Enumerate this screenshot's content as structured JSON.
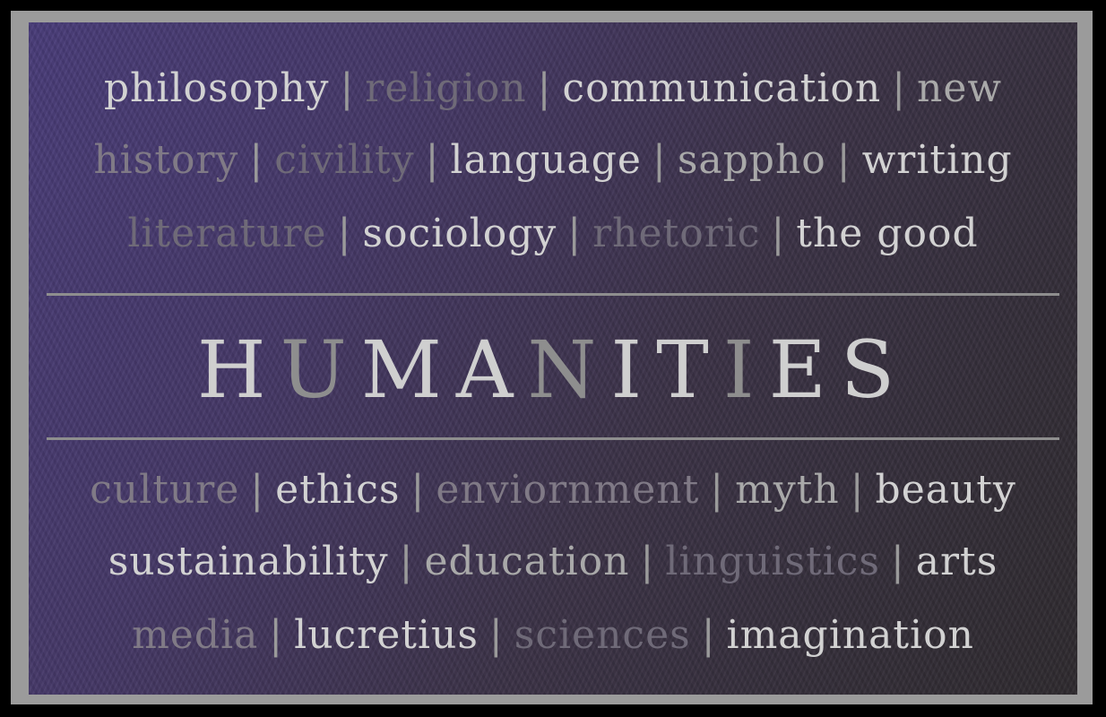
{
  "top_rows": [
    [
      "philosophy",
      "religion",
      "communication",
      "new"
    ],
    [
      "history",
      "civility",
      "language",
      "sappho",
      "writing"
    ],
    [
      "literature",
      "sociology",
      "rhetoric",
      "the good"
    ]
  ],
  "separator": "|",
  "title_letters": [
    "H",
    "U",
    "M",
    "A",
    "N",
    "I",
    "T",
    "I",
    "E",
    "S"
  ],
  "bottom_rows": [
    [
      "culture",
      "ethics",
      "enviornment",
      "myth",
      "beauty"
    ],
    [
      "sustainability",
      "education",
      "linguistics",
      "arts"
    ],
    [
      "media",
      "lucretius",
      "sciences",
      "imagination"
    ]
  ],
  "colors": {
    "frame": "#9b9b9b",
    "background_start": "#4a3d7a",
    "background_end": "#2f2b2f"
  }
}
